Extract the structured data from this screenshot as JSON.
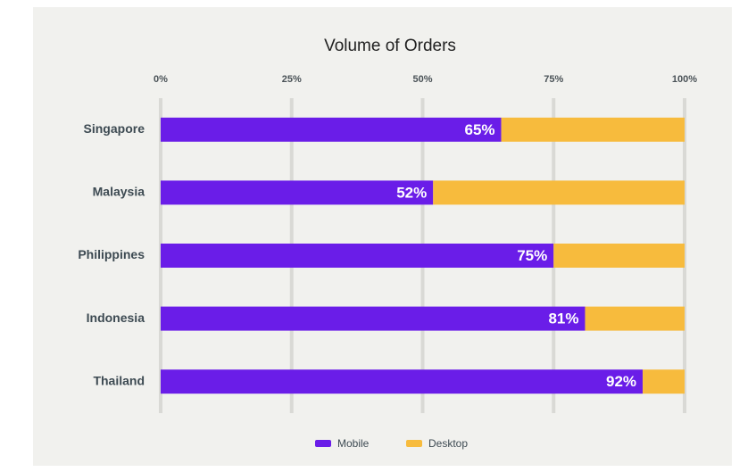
{
  "chart_data": {
    "type": "stacked_bar_horizontal",
    "title": "Volume of Orders",
    "categories": [
      "Singapore",
      "Malaysia",
      "Philippines",
      "Indonesia",
      "Thailand"
    ],
    "series": [
      {
        "name": "Mobile",
        "color": "#6a1de8",
        "values": [
          65,
          52,
          75,
          81,
          92
        ],
        "value_labels": [
          "65%",
          "52%",
          "75%",
          "81%",
          "92%"
        ]
      },
      {
        "name": "Desktop",
        "color": "#f7bb3d",
        "values": [
          35,
          48,
          25,
          19,
          8
        ]
      }
    ],
    "xlim": [
      0,
      100
    ],
    "xticks": [
      {
        "value": 0,
        "label": "0%"
      },
      {
        "value": 25,
        "label": "25%"
      },
      {
        "value": 50,
        "label": "50%"
      },
      {
        "value": 75,
        "label": "75%"
      },
      {
        "value": 100,
        "label": "100%"
      }
    ],
    "grid": true,
    "legend": "bottom"
  }
}
